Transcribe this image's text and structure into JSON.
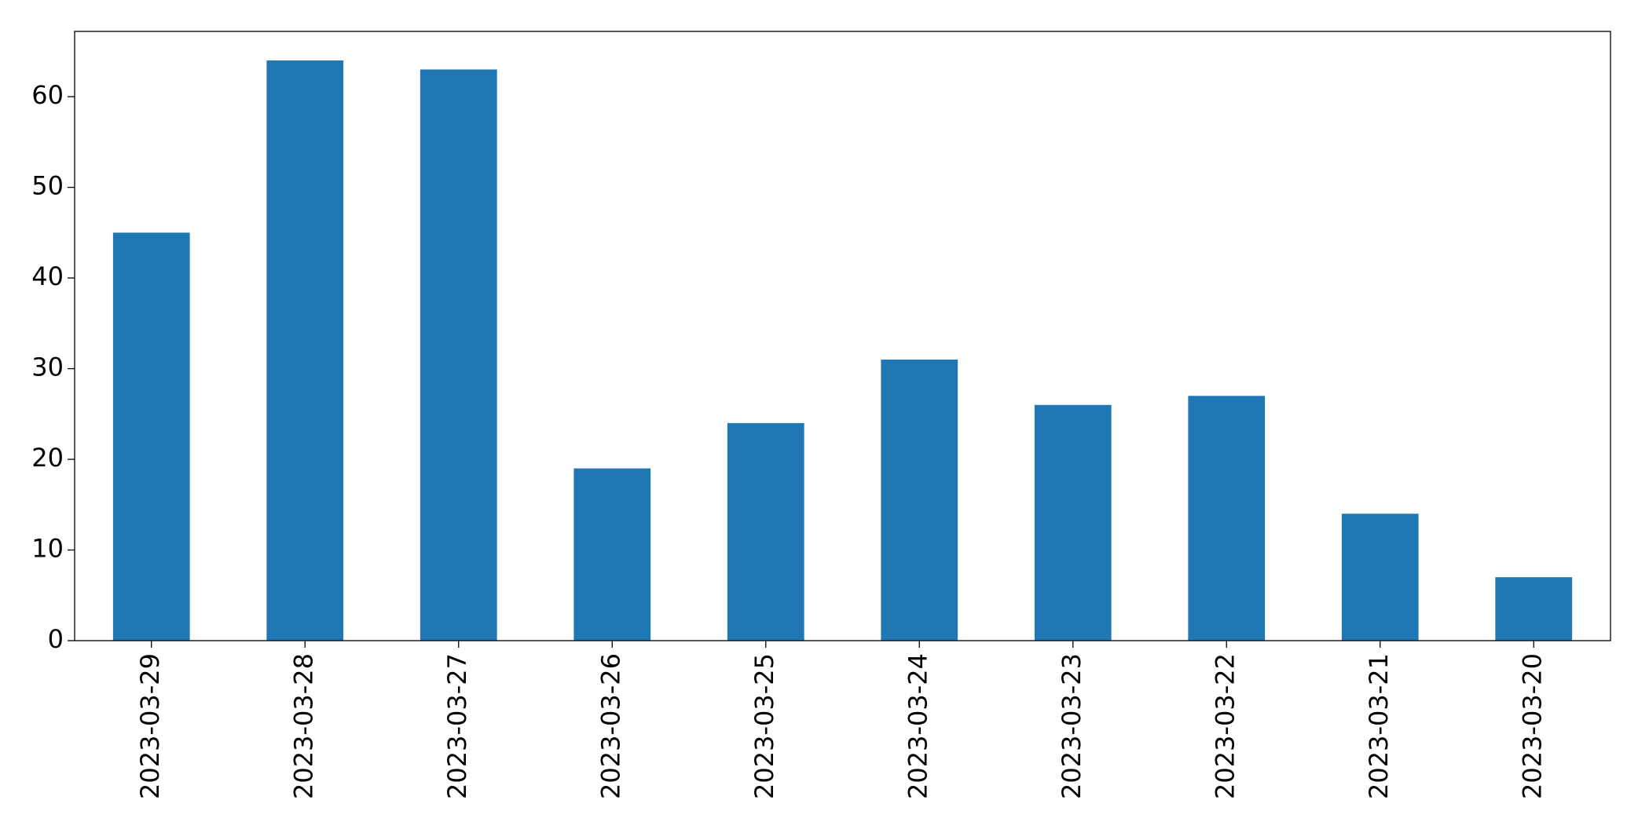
{
  "chart_data": {
    "type": "bar",
    "categories": [
      "2023-03-29",
      "2023-03-28",
      "2023-03-27",
      "2023-03-26",
      "2023-03-25",
      "2023-03-24",
      "2023-03-23",
      "2023-03-22",
      "2023-03-21",
      "2023-03-20"
    ],
    "values": [
      45,
      64,
      63,
      19,
      24,
      31,
      26,
      27,
      14,
      7
    ],
    "color": "#1f77b4",
    "ylim": [
      0,
      67.2
    ],
    "yticks": [
      0,
      10,
      20,
      30,
      40,
      50,
      60
    ],
    "grid": false
  }
}
